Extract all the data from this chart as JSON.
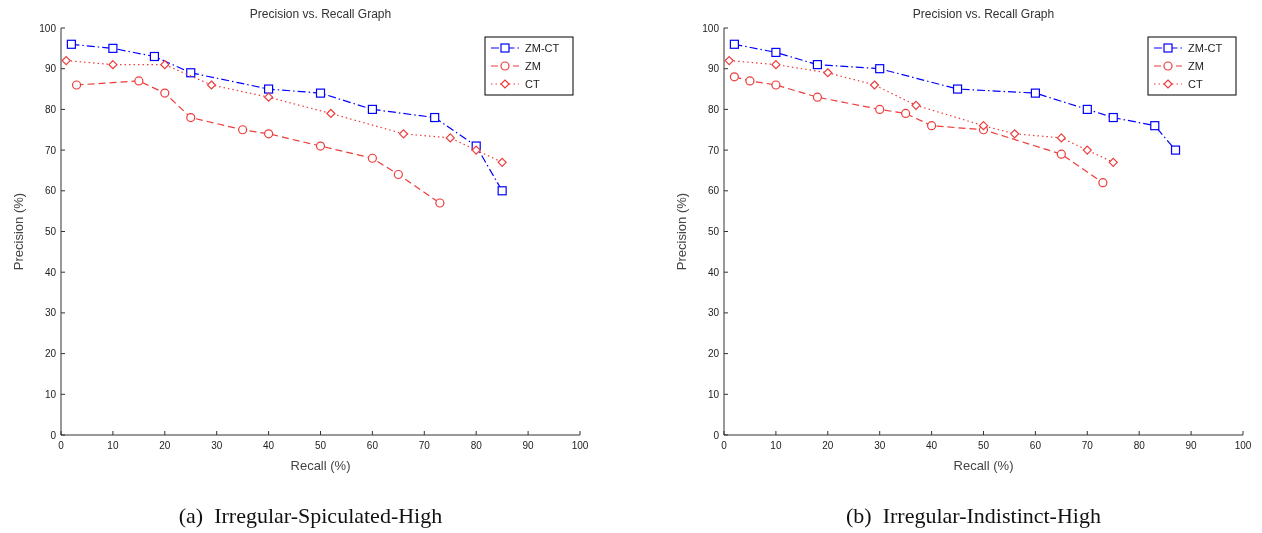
{
  "chart_data": [
    {
      "type": "line",
      "title": "Precision vs. Recall Graph",
      "xlabel": "Recall (%)",
      "ylabel": "Precision (%)",
      "annotations": [
        "(a)  Irregular-Spiculated-High"
      ],
      "xlim": [
        0,
        100
      ],
      "ylim": [
        0,
        100
      ],
      "xticks": [
        0,
        10,
        20,
        30,
        40,
        50,
        60,
        70,
        80,
        90,
        100
      ],
      "yticks": [
        0,
        10,
        20,
        30,
        40,
        50,
        60,
        70,
        80,
        90,
        100
      ],
      "legend": "top right",
      "series": [
        {
          "name": "ZM-CT",
          "color": "#0000ff",
          "marker": "square",
          "line_style": "dashdot",
          "x": [
            2,
            10,
            18,
            25,
            40,
            50,
            60,
            72,
            80,
            85
          ],
          "values": [
            96,
            95,
            93,
            89,
            85,
            84,
            80,
            78,
            71,
            60
          ]
        },
        {
          "name": "ZM",
          "color": "#ee3b3b",
          "marker": "circle",
          "line_style": "dashed",
          "x": [
            3,
            15,
            20,
            25,
            35,
            40,
            50,
            60,
            65,
            73
          ],
          "values": [
            86,
            87,
            84,
            78,
            75,
            74,
            71,
            68,
            64,
            57
          ]
        },
        {
          "name": "CT",
          "color": "#ee3b3b",
          "marker": "diamond",
          "line_style": "dotted",
          "x": [
            1,
            10,
            20,
            29,
            40,
            52,
            66,
            75,
            80,
            85
          ],
          "values": [
            92,
            91,
            91,
            86,
            83,
            79,
            74,
            73,
            70,
            67
          ]
        }
      ]
    },
    {
      "type": "line",
      "title": "Precision vs. Recall Graph",
      "xlabel": "Recall (%)",
      "ylabel": "Precision (%)",
      "annotations": [
        "(b)  Irregular-Indistinct-High"
      ],
      "xlim": [
        0,
        100
      ],
      "ylim": [
        0,
        100
      ],
      "xticks": [
        0,
        10,
        20,
        30,
        40,
        50,
        60,
        70,
        80,
        90,
        100
      ],
      "yticks": [
        0,
        10,
        20,
        30,
        40,
        50,
        60,
        70,
        80,
        90,
        100
      ],
      "legend": "top right",
      "series": [
        {
          "name": "ZM-CT",
          "color": "#0000ff",
          "marker": "square",
          "line_style": "dashdot",
          "x": [
            2,
            10,
            18,
            30,
            45,
            60,
            70,
            75,
            83,
            87
          ],
          "values": [
            96,
            94,
            91,
            90,
            85,
            84,
            80,
            78,
            76,
            70
          ]
        },
        {
          "name": "ZM",
          "color": "#ee3b3b",
          "marker": "circle",
          "line_style": "dashed",
          "x": [
            2,
            5,
            10,
            18,
            30,
            35,
            40,
            50,
            65,
            73
          ],
          "values": [
            88,
            87,
            86,
            83,
            80,
            79,
            76,
            75,
            69,
            62
          ]
        },
        {
          "name": "CT",
          "color": "#ee3b3b",
          "marker": "diamond",
          "line_style": "dotted",
          "x": [
            1,
            10,
            20,
            29,
            37,
            50,
            56,
            65,
            70,
            75
          ],
          "values": [
            92,
            91,
            89,
            86,
            81,
            76,
            74,
            73,
            70,
            67
          ]
        }
      ]
    }
  ]
}
